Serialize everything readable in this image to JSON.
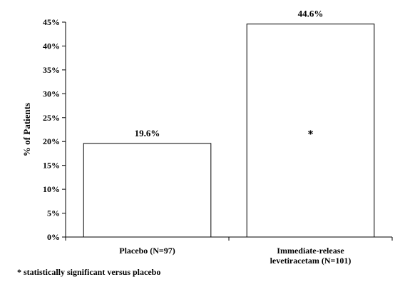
{
  "chart_data": {
    "type": "bar",
    "categories": [
      [
        "Placebo (N=97)"
      ],
      [
        "Immediate-release",
        "levetiracetam (N=101)"
      ]
    ],
    "values": [
      19.6,
      44.6
    ],
    "value_labels": [
      "19.6%",
      "44.6%"
    ],
    "annotations": [
      "",
      "*"
    ],
    "ylabel": "% of Patients",
    "ylim": [
      0,
      45
    ],
    "yticks": [
      0,
      5,
      10,
      15,
      20,
      25,
      30,
      35,
      40,
      45
    ],
    "ytick_labels": [
      "0%",
      "5%",
      "10%",
      "15%",
      "20%",
      "25%",
      "30%",
      "35%",
      "40%",
      "45%"
    ],
    "grid": false,
    "bar_color": "#ffffff",
    "bar_edge_color": "#000000"
  },
  "footnote": "* statistically significant versus placebo"
}
